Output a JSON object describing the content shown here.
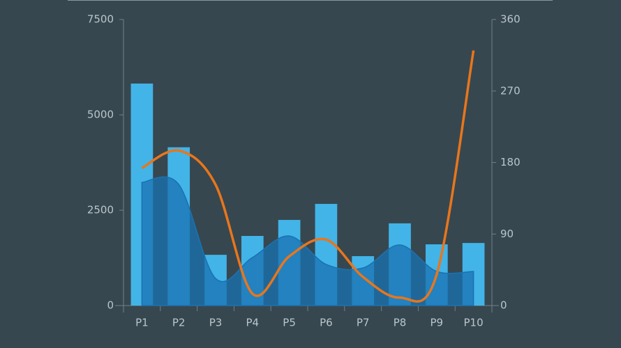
{
  "chart_data": {
    "type": "combo",
    "categories": [
      "P1",
      "P2",
      "P3",
      "P4",
      "P5",
      "P6",
      "P7",
      "P8",
      "P9",
      "P10"
    ],
    "series": [
      {
        "type": "bar",
        "color": "#42b4e8",
        "axis": "y",
        "values": [
          5820,
          4150,
          1330,
          1825,
          2245,
          2665,
          1295,
          2155,
          1605,
          1640
        ]
      },
      {
        "type": "area",
        "color": "#1a72b2",
        "axis": "y",
        "values": [
          3230,
          3175,
          710,
          1260,
          1825,
          1080,
          985,
          1590,
          895,
          895
        ]
      },
      {
        "type": "line",
        "color": "#e8761c",
        "axis": "y2",
        "values": [
          173,
          195,
          152,
          15,
          62,
          83,
          36,
          10,
          39,
          321
        ]
      }
    ],
    "ylim": [
      0,
      7500
    ],
    "yticks": [
      0,
      2500,
      5000,
      7500
    ],
    "y2lim": [
      0,
      360
    ],
    "y2ticks": [
      0,
      90,
      180,
      270,
      360
    ]
  }
}
